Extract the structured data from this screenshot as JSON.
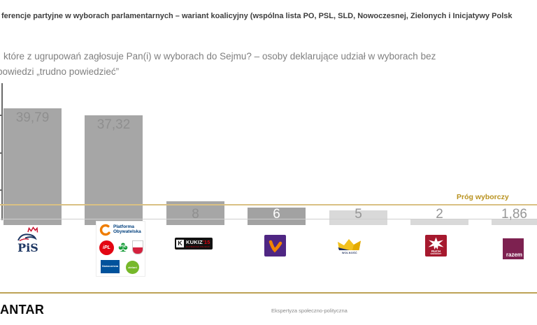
{
  "header": {
    "title": "ferencje partyjne w wyborach parlamentarnych – wariant koalicyjny (wspólna lista PO, PSL, SLD, Nowoczesnej, Zielonych i Inicjatywy Polsk",
    "subtitle_line_1": "które z ugrupowań zagłosuje Pan(i) w wyborach do Sejmu? – osoby deklarujące udział w wyborach bez",
    "subtitle_line_2": "powiedzi „trudno powiedzieć”"
  },
  "chart_data": {
    "type": "bar",
    "categories": [
      "PiS",
      "Koalicja PO, PSL, SLD, Nowoczesna, Zieloni, Inicjatywa Polska",
      "Kukiz'15",
      "Wiosna",
      "Wolność",
      "Ruch Narodowy",
      "Razem"
    ],
    "values": [
      39.79,
      37.32,
      8,
      6,
      5,
      2,
      1.86
    ],
    "value_labels": [
      "39,79",
      "37,32",
      "8",
      "6",
      "5",
      "2",
      "1,86"
    ],
    "unit": "%",
    "ylim": [
      0,
      45
    ],
    "grid": "off",
    "threshold_label": "Próg wyborczy",
    "threshold_value": 5,
    "bar_colors": [
      "#a6a6a6",
      "#a6a6a6",
      "#a6a6a6",
      "#a2a2a2",
      "#d9d9d9",
      "#d9d9d9",
      "#d9d9d9"
    ],
    "label_colors": [
      "#8f8f8f",
      "#8f8f8f",
      "#8f8f8f",
      "#ffffff",
      "#969696",
      "#969696",
      "#969696"
    ],
    "slugs": [
      "pis",
      "koalicja",
      "kukiz15",
      "wiosna",
      "wolnosc",
      "ruch-narodowy",
      "razem"
    ]
  },
  "logos": {
    "pis": {
      "text": "PiS"
    },
    "koalicja": {
      "po_line1": "Platforma",
      "po_line2": "Obywatelska",
      "ipl": "iPL",
      "psl": "PSL",
      "nowoczesna": "Nowoczesna",
      "zieloni": "zieloni"
    },
    "kukiz": {
      "main": "KUKIZ",
      "suffix": "'15",
      "sub": "POTRAFISZ POLSKO!"
    },
    "wolnosc": {
      "band": "WOLNOŚĆ"
    },
    "ruch_narodowy": {
      "line1": "RUCH",
      "line2": "NARODOWY"
    },
    "razem": {
      "text": "razem"
    }
  },
  "footer": {
    "brand": "ANTAR",
    "note": "Ekspertyza społeczno-polityczna"
  },
  "colors": {
    "threshold_line": "#d9c083",
    "threshold_text": "#b9921f",
    "footer_line": "#bda356",
    "wiosna_bg": "#4f2683",
    "wiosna_mark": "#f08300",
    "rn_bg": "#a6192e",
    "razem_bg": "#7d2150",
    "crown_gold": "#f2c11e"
  }
}
